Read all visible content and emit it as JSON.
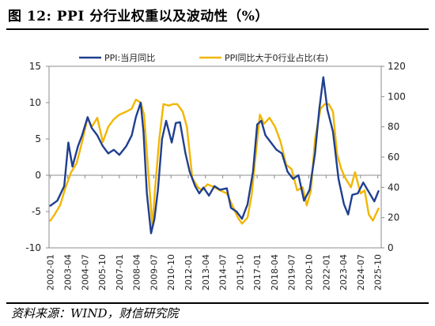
{
  "title": "图 12:  PPI 分行业权重以及波动性（%）",
  "source": "资料来源：WIND，财信研究院",
  "chart_data": {
    "type": "line",
    "legend_placement": "top",
    "grid": false,
    "x_tick_labels": [
      "2002-01",
      "2003-04",
      "2004-07",
      "2005-10",
      "2007-01",
      "2008-04",
      "2009-07",
      "2010-10",
      "2012-01",
      "2013-04",
      "2014-07",
      "2015-10",
      "2017-01",
      "2018-04",
      "2019-07",
      "2020-10",
      "2022-01",
      "2023-04",
      "2024-07",
      "2025-10"
    ],
    "y_left": {
      "ticks": [
        "15",
        "10",
        "5",
        "0",
        "-5",
        "-10"
      ],
      "range": [
        -10,
        15
      ]
    },
    "y_right": {
      "ticks": [
        "120",
        "100",
        "80",
        "60",
        "40",
        "20",
        "0"
      ],
      "range": [
        0,
        120
      ]
    },
    "series": [
      {
        "name": "PPI:当月同比",
        "axis": "left",
        "color": "#1f3f8f",
        "x": [
          2002.0,
          2002.5,
          2003.0,
          2003.3,
          2003.6,
          2004.0,
          2004.3,
          2004.7,
          2005.0,
          2005.4,
          2005.8,
          2006.2,
          2006.6,
          2007.0,
          2007.5,
          2007.9,
          2008.2,
          2008.55,
          2008.75,
          2009.0,
          2009.3,
          2009.55,
          2009.8,
          2010.1,
          2010.4,
          2010.8,
          2011.1,
          2011.4,
          2011.8,
          2012.1,
          2012.5,
          2012.8,
          2013.1,
          2013.5,
          2013.9,
          2014.3,
          2014.8,
          2015.1,
          2015.5,
          2015.9,
          2016.3,
          2016.7,
          2017.0,
          2017.3,
          2017.6,
          2018.0,
          2018.4,
          2018.8,
          2019.2,
          2019.6,
          2020.0,
          2020.4,
          2020.8,
          2021.2,
          2021.5,
          2021.8,
          2022.1,
          2022.5,
          2022.9,
          2023.3,
          2023.6,
          2023.9,
          2024.3,
          2024.7,
          2025.1,
          2025.5,
          2025.8
        ],
        "y": [
          -4.2,
          -3.5,
          -1.5,
          4.5,
          1.2,
          4.0,
          5.5,
          8.0,
          6.5,
          5.5,
          4.0,
          3.0,
          3.5,
          2.8,
          4.0,
          5.5,
          8.0,
          10.0,
          6.0,
          -2.5,
          -8.0,
          -6.0,
          -2.0,
          5.0,
          7.5,
          4.5,
          7.2,
          7.3,
          3.0,
          0.5,
          -1.5,
          -2.5,
          -1.7,
          -2.8,
          -1.5,
          -2.0,
          -1.8,
          -4.5,
          -5.0,
          -6.0,
          -4.0,
          0.5,
          7.0,
          7.5,
          5.5,
          4.5,
          3.5,
          3.0,
          0.5,
          -0.5,
          0.0,
          -3.5,
          -2.0,
          3.0,
          9.0,
          13.5,
          9.0,
          6.0,
          -0.5,
          -4.0,
          -5.4,
          -2.7,
          -2.5,
          -1.0,
          -2.3,
          -3.6,
          -2.2
        ]
      },
      {
        "name": "PPI同比大于0行业占比(右)",
        "axis": "right",
        "color": "#f2b600",
        "x": [
          2002.0,
          2002.3,
          2002.7,
          2003.1,
          2003.5,
          2003.9,
          2004.3,
          2004.7,
          2005.0,
          2005.4,
          2005.8,
          2006.2,
          2006.6,
          2007.0,
          2007.5,
          2007.9,
          2008.2,
          2008.55,
          2008.8,
          2009.1,
          2009.4,
          2009.6,
          2009.9,
          2010.2,
          2010.6,
          2010.9,
          2011.2,
          2011.6,
          2011.9,
          2012.3,
          2012.7,
          2013.0,
          2013.4,
          2013.9,
          2014.3,
          2014.8,
          2015.2,
          2015.6,
          2015.9,
          2016.3,
          2016.6,
          2016.9,
          2017.2,
          2017.5,
          2017.9,
          2018.3,
          2018.7,
          2019.1,
          2019.5,
          2019.9,
          2020.3,
          2020.6,
          2020.9,
          2021.2,
          2021.6,
          2021.9,
          2022.2,
          2022.5,
          2022.8,
          2023.1,
          2023.4,
          2023.8,
          2024.1,
          2024.5,
          2024.8,
          2025.1,
          2025.4,
          2025.8
        ],
        "y": [
          18,
          22,
          28,
          40,
          50,
          56,
          70,
          86,
          80,
          86,
          70,
          80,
          85,
          88,
          90,
          92,
          98,
          96,
          88,
          50,
          14,
          40,
          72,
          95,
          94,
          95,
          95,
          90,
          80,
          46,
          40,
          38,
          42,
          40,
          38,
          36,
          28,
          20,
          16,
          20,
          35,
          62,
          88,
          82,
          86,
          80,
          70,
          55,
          52,
          38,
          40,
          28,
          38,
          72,
          92,
          95,
          95,
          90,
          62,
          52,
          46,
          40,
          50,
          36,
          38,
          22,
          18,
          26
        ]
      }
    ]
  }
}
